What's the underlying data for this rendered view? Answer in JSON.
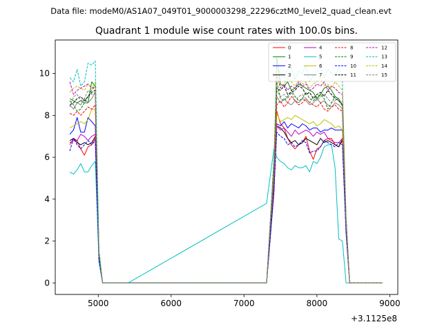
{
  "figure": {
    "suptitle": "Data file: modeM0/AS1A07_049T01_9000003298_22296cztM0_level2_quad_clean.evt",
    "title": "Quadrant 1 module wise count rates with 100.0s bins.",
    "offset_label": "+3.1125e8"
  },
  "chart_data": {
    "type": "line",
    "title": "Quadrant 1 module wise count rates with 100.0s bins.",
    "xlabel": "",
    "ylabel": "",
    "x_offset": 311250000,
    "xlim": [
      4410,
      9110
    ],
    "ylim": [
      -0.55,
      11.6
    ],
    "xticks": [
      5000,
      6000,
      7000,
      8000,
      9000
    ],
    "yticks": [
      0,
      2,
      4,
      6,
      8,
      10
    ],
    "grid": false,
    "legend_position": "top-right",
    "legend_columns": 4,
    "segments": [
      {
        "x_start": 4610,
        "x_step": 50,
        "count": 17
      },
      {
        "x_start": 7310,
        "x_step": 100,
        "count": 2
      },
      {
        "x_start": 7450,
        "x_step": 50,
        "count": 30
      }
    ],
    "series": [
      {
        "name": "0",
        "color": "#ff0000",
        "dash": "solid",
        "values": [
          6.6,
          6.9,
          6.8,
          6.4,
          6.1,
          6.5,
          6.6,
          6.9,
          1.2,
          0,
          0,
          0,
          0,
          0,
          0,
          0,
          0,
          0,
          4.5,
          8.2,
          7.6,
          7.4,
          6.9,
          6.6,
          6.4,
          6.6,
          6.7,
          7.0,
          6.3,
          5.9,
          6.4,
          6.5,
          6.8,
          6.9,
          6.9,
          6.6,
          6.5,
          6.9,
          3.1,
          0,
          0,
          0,
          0,
          0,
          0,
          0,
          0,
          0,
          0,
          0
        ]
      },
      {
        "name": "1",
        "color": "#008000",
        "dash": "solid",
        "values": [
          8.8,
          8.7,
          8.6,
          8.7,
          8.6,
          8.6,
          9.6,
          9.4,
          1.4,
          0,
          0,
          0,
          0,
          0,
          0,
          0,
          0,
          0,
          5.2,
          10.8,
          9.5,
          9.4,
          9.6,
          9.2,
          9.3,
          9.5,
          9.4,
          9.3,
          9.2,
          9.1,
          8.8,
          9.0,
          9.3,
          9.4,
          9.2,
          8.9,
          8.8,
          8.5,
          3.0,
          0,
          0,
          0,
          0,
          0,
          0,
          0,
          0,
          0,
          0,
          0
        ]
      },
      {
        "name": "2",
        "color": "#0000ff",
        "dash": "solid",
        "values": [
          7.1,
          7.3,
          7.9,
          7.2,
          7.2,
          7.9,
          7.7,
          7.5,
          1.2,
          0,
          0,
          0,
          0,
          0,
          0,
          0,
          0,
          0,
          4.8,
          7.6,
          7.5,
          7.7,
          7.4,
          7.6,
          7.5,
          7.4,
          7.6,
          7.5,
          7.3,
          7.4,
          7.4,
          7.2,
          7.3,
          7.3,
          7.4,
          7.3,
          7.3,
          7.3,
          2.9,
          0,
          0,
          0,
          0,
          0,
          0,
          0,
          0,
          0,
          0,
          0
        ]
      },
      {
        "name": "3",
        "color": "#000000",
        "dash": "solid",
        "values": [
          6.8,
          6.9,
          6.7,
          6.6,
          6.7,
          6.6,
          6.7,
          7.0,
          1.1,
          0,
          0,
          0,
          0,
          0,
          0,
          0,
          0,
          0,
          4.3,
          7.5,
          7.4,
          7.2,
          6.9,
          6.7,
          6.8,
          6.6,
          6.7,
          6.9,
          6.8,
          6.7,
          6.6,
          6.9,
          6.7,
          6.8,
          6.7,
          6.6,
          6.5,
          6.8,
          2.4,
          0,
          0,
          0,
          0,
          0,
          0,
          0,
          0,
          0,
          0,
          0
        ]
      },
      {
        "name": "4",
        "color": "#bf00bf",
        "dash": "solid",
        "values": [
          6.7,
          6.8,
          6.8,
          7.1,
          7.0,
          6.8,
          7.0,
          7.1,
          1.2,
          0,
          0,
          0,
          0,
          0,
          0,
          0,
          0,
          0,
          4.5,
          7.5,
          7.3,
          7.4,
          7.2,
          7.0,
          7.3,
          7.1,
          7.2,
          7.3,
          7.2,
          7.0,
          7.2,
          7.1,
          7.2,
          6.9,
          6.8,
          6.7,
          6.7,
          6.9,
          2.6,
          0,
          0,
          0,
          0,
          0,
          0,
          0,
          0,
          0,
          0,
          0
        ]
      },
      {
        "name": "5",
        "color": "#00bfbf",
        "dash": "solid",
        "values": [
          5.3,
          5.2,
          5.4,
          5.7,
          5.3,
          5.3,
          5.6,
          5.8,
          1.0,
          0,
          0,
          0,
          0,
          0,
          0,
          0,
          0,
          3.8,
          6.4,
          6.0,
          5.8,
          5.7,
          5.5,
          5.4,
          5.6,
          5.5,
          5.5,
          5.6,
          5.3,
          5.8,
          5.7,
          6.0,
          6.5,
          6.6,
          6.6,
          5.5,
          2.1,
          2.0,
          0,
          0,
          0,
          0,
          0,
          0,
          0,
          0,
          0,
          0,
          0
        ]
      },
      {
        "name": "6",
        "color": "#bfbf00",
        "dash": "solid",
        "values": [
          7.4,
          7.5,
          7.6,
          7.7,
          7.6,
          7.8,
          8.3,
          8.3,
          1.4,
          0,
          0,
          0,
          0,
          0,
          0,
          0,
          0,
          0,
          5.0,
          8.1,
          7.7,
          7.8,
          7.9,
          7.8,
          8.0,
          7.9,
          7.8,
          7.7,
          7.6,
          7.7,
          7.5,
          7.6,
          7.8,
          7.7,
          7.6,
          7.4,
          7.5,
          7.3,
          2.7,
          0,
          0,
          0,
          0,
          0,
          0,
          0,
          0,
          0,
          0,
          0
        ]
      },
      {
        "name": "7",
        "color": "#808080",
        "dash": "solid",
        "values": [
          8.5,
          8.3,
          8.6,
          8.5,
          8.8,
          8.6,
          8.8,
          9.1,
          1.3,
          0,
          0,
          0,
          0,
          0,
          0,
          0,
          0,
          0,
          5.4,
          8.9,
          8.6,
          8.8,
          8.6,
          8.5,
          8.7,
          8.6,
          8.8,
          8.7,
          8.5,
          8.6,
          8.8,
          8.6,
          8.7,
          8.5,
          8.4,
          8.6,
          8.5,
          8.3,
          2.8,
          0,
          0,
          0,
          0,
          0,
          0,
          0,
          0,
          0,
          0,
          0
        ]
      },
      {
        "name": "8",
        "color": "#ff0000",
        "dash": "dashed",
        "values": [
          8.1,
          8.0,
          8.2,
          8.0,
          8.2,
          8.4,
          8.3,
          8.5,
          1.3,
          0,
          0,
          0,
          0,
          0,
          0,
          0,
          0,
          0,
          5.3,
          8.5,
          8.7,
          8.4,
          8.6,
          8.9,
          8.7,
          8.5,
          8.6,
          8.8,
          8.6,
          8.5,
          8.4,
          8.6,
          8.3,
          8.2,
          8.4,
          8.5,
          8.3,
          8.2,
          2.8,
          0,
          0,
          0,
          0,
          0,
          0,
          0,
          0,
          0,
          0,
          0
        ]
      },
      {
        "name": "9",
        "color": "#008000",
        "dash": "dashed",
        "values": [
          8.7,
          8.5,
          8.2,
          8.3,
          8.6,
          8.9,
          9.2,
          9.4,
          1.4,
          0,
          0,
          0,
          0,
          0,
          0,
          0,
          0,
          0,
          5.6,
          9.6,
          8.8,
          8.7,
          8.9,
          9.2,
          8.9,
          8.7,
          8.8,
          9.1,
          8.8,
          8.7,
          8.9,
          9.0,
          8.8,
          8.3,
          8.6,
          8.9,
          8.7,
          8.5,
          2.9,
          0,
          0,
          0,
          0,
          0,
          0,
          0,
          0,
          0,
          0,
          0
        ]
      },
      {
        "name": "10",
        "color": "#0000ff",
        "dash": "dashed",
        "values": [
          6.3,
          6.9,
          6.6,
          6.4,
          6.6,
          6.8,
          6.6,
          6.8,
          1.1,
          0,
          0,
          0,
          0,
          0,
          0,
          0,
          0,
          0,
          4.4,
          7.2,
          7.0,
          6.9,
          6.6,
          6.7,
          6.5,
          6.6,
          6.8,
          6.7,
          6.2,
          6.3,
          6.3,
          6.5,
          6.8,
          6.7,
          6.6,
          6.5,
          6.7,
          6.6,
          2.4,
          0,
          0,
          0,
          0,
          0,
          0,
          0,
          0,
          0,
          0,
          0
        ]
      },
      {
        "name": "11",
        "color": "#000000",
        "dash": "dashed",
        "values": [
          8.5,
          8.6,
          8.8,
          8.9,
          8.7,
          8.9,
          9.1,
          9.2,
          1.3,
          0,
          0,
          0,
          0,
          0,
          0,
          0,
          0,
          0,
          5.5,
          9.3,
          9.2,
          9.4,
          9.0,
          9.1,
          9.2,
          9.4,
          9.3,
          9.0,
          9.1,
          8.8,
          9.0,
          9.1,
          8.9,
          9.2,
          9.0,
          8.8,
          8.7,
          8.5,
          2.8,
          0,
          0,
          0,
          0,
          0,
          0,
          0,
          0,
          0,
          0,
          0
        ]
      },
      {
        "name": "12",
        "color": "#bf00bf",
        "dash": "dashed",
        "values": [
          9.6,
          9.0,
          9.2,
          9.3,
          9.4,
          9.5,
          9.3,
          9.4,
          1.5,
          0,
          0,
          0,
          0,
          0,
          0,
          0,
          0,
          0,
          5.8,
          9.9,
          9.3,
          9.5,
          9.2,
          9.4,
          9.3,
          9.6,
          9.4,
          9.5,
          9.2,
          9.3,
          9.5,
          9.4,
          9.6,
          9.2,
          9.4,
          9.3,
          9.1,
          9.0,
          3.1,
          0,
          0,
          0,
          0,
          0,
          0,
          0,
          0,
          0,
          0,
          0
        ]
      },
      {
        "name": "13",
        "color": "#00bfbf",
        "dash": "dashed",
        "values": [
          9.8,
          9.6,
          10.2,
          9.4,
          9.6,
          10.5,
          10.4,
          10.6,
          1.6,
          0,
          0,
          0,
          0,
          0,
          0,
          0,
          0,
          0,
          6.0,
          10.4,
          10.0,
          9.8,
          10.2,
          10.3,
          9.7,
          10.1,
          10.0,
          10.4,
          9.6,
          9.9,
          10.1,
          10.3,
          9.8,
          10.2,
          10.0,
          9.9,
          10.3,
          9.6,
          3.2,
          0,
          0,
          0,
          0,
          0,
          0,
          0,
          0,
          0,
          0,
          0
        ]
      },
      {
        "name": "14",
        "color": "#bfbf00",
        "dash": "dashed",
        "values": [
          9.1,
          9.3,
          9.4,
          9.3,
          9.2,
          9.5,
          9.3,
          9.6,
          1.5,
          0,
          0,
          0,
          0,
          0,
          0,
          0,
          0,
          0,
          5.7,
          10.2,
          9.4,
          9.5,
          9.8,
          9.6,
          9.4,
          9.7,
          9.5,
          9.6,
          9.3,
          9.5,
          9.6,
          9.8,
          9.4,
          9.5,
          9.3,
          9.6,
          9.4,
          9.2,
          3.0,
          0,
          0,
          0,
          0,
          0,
          0,
          0,
          0,
          0,
          0,
          0
        ]
      },
      {
        "name": "15",
        "color": "#808080",
        "dash": "dashed",
        "values": [
          8.4,
          8.9,
          9.0,
          8.7,
          8.8,
          9.2,
          9.0,
          9.1,
          1.4,
          0,
          0,
          0,
          0,
          0,
          0,
          0,
          0,
          0,
          5.6,
          9.2,
          8.9,
          9.0,
          8.8,
          9.1,
          8.7,
          8.9,
          9.0,
          8.8,
          8.6,
          8.9,
          8.7,
          8.9,
          9.0,
          8.8,
          8.6,
          8.7,
          8.8,
          8.4,
          2.8,
          0,
          0,
          0,
          0,
          0,
          0,
          0,
          0,
          0,
          0,
          0
        ]
      }
    ]
  }
}
